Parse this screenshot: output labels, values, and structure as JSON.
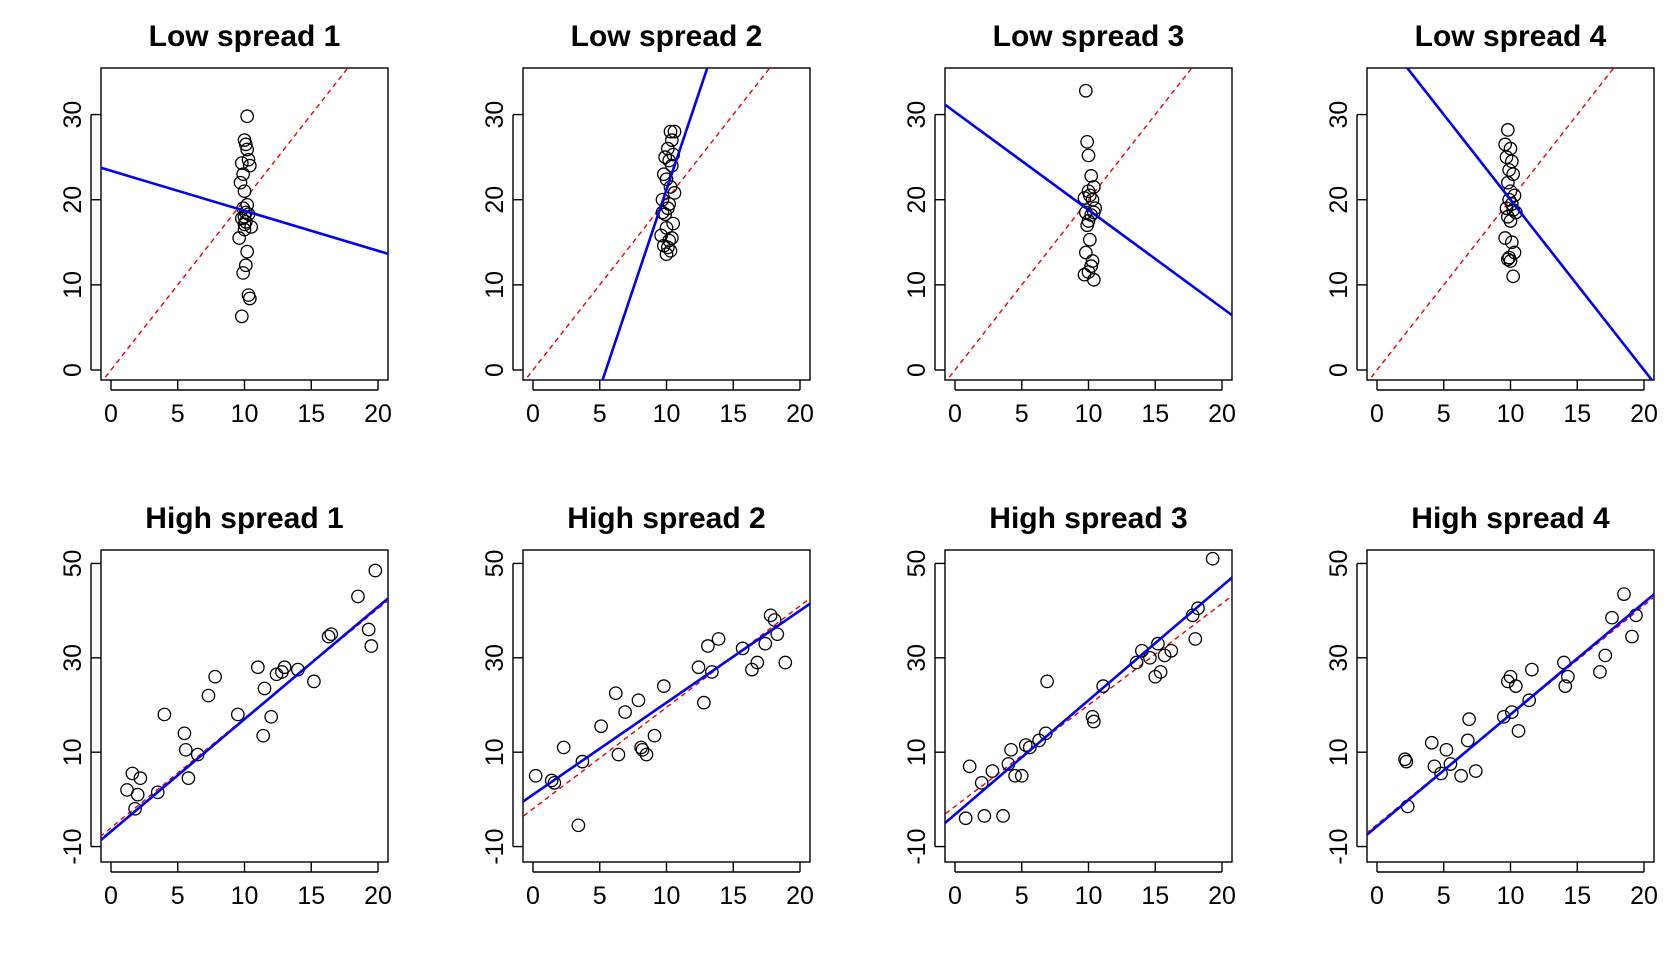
{
  "chart_data": [
    {
      "type": "scatter",
      "title": "Low spread 1",
      "xlim": [
        0,
        20
      ],
      "ylim": [
        0,
        35
      ],
      "xticks": [
        0,
        5,
        10,
        15,
        20
      ],
      "yticks": [
        0,
        10,
        20,
        30
      ],
      "x": [
        10.2,
        9.8,
        10.1,
        10.0,
        10.3,
        9.9,
        10.4,
        9.7,
        10.0,
        10.2,
        9.9,
        10.1,
        10.3,
        9.8,
        10.0,
        10.5,
        9.6,
        10.2,
        10.1,
        9.9,
        10.0,
        10.3,
        10.4,
        9.8,
        10.1,
        10.2,
        10.0
      ],
      "y": [
        29.8,
        24.3,
        26.5,
        27.0,
        24.7,
        23.0,
        24.0,
        22.0,
        21.0,
        19.4,
        19.0,
        18.5,
        18.3,
        17.8,
        17.1,
        16.8,
        15.5,
        13.9,
        12.3,
        11.4,
        16.5,
        8.8,
        8.4,
        6.3,
        17.4,
        25.9,
        18.0
      ],
      "fit_line": {
        "intercept": 23.4,
        "slope": -0.47
      },
      "reference_line": {
        "intercept": 0,
        "slope": 2
      }
    },
    {
      "type": "scatter",
      "title": "Low spread 2",
      "xlim": [
        0,
        20
      ],
      "ylim": [
        0,
        35
      ],
      "xticks": [
        0,
        5,
        10,
        15,
        20
      ],
      "yticks": [
        0,
        10,
        20,
        30
      ],
      "x": [
        10.3,
        10.6,
        10.4,
        10.1,
        10.5,
        9.9,
        10.2,
        10.4,
        9.8,
        10.0,
        10.3,
        10.6,
        9.7,
        10.2,
        10.1,
        9.9,
        10.5,
        10.0,
        9.6,
        10.4,
        10.2,
        9.8,
        10.1,
        10.3,
        10.0,
        9.7
      ],
      "y": [
        28.0,
        28.0,
        27.0,
        26.0,
        25.3,
        25.0,
        24.6,
        24.0,
        23.0,
        22.4,
        21.5,
        20.8,
        20.0,
        19.5,
        19.0,
        18.3,
        17.2,
        16.7,
        15.8,
        15.5,
        15.2,
        14.6,
        14.4,
        14.0,
        13.6,
        18.5
      ],
      "fit_line": {
        "intercept": -25.5,
        "slope": 4.67
      },
      "reference_line": {
        "intercept": 0,
        "slope": 2
      }
    },
    {
      "type": "scatter",
      "title": "Low spread 3",
      "xlim": [
        0,
        20
      ],
      "ylim": [
        0,
        35
      ],
      "xticks": [
        0,
        5,
        10,
        15,
        20
      ],
      "yticks": [
        0,
        10,
        20,
        30
      ],
      "x": [
        9.8,
        9.9,
        10.0,
        10.2,
        10.0,
        10.4,
        10.1,
        9.7,
        10.3,
        10.5,
        9.8,
        10.2,
        10.4,
        10.0,
        9.9,
        10.1,
        9.8,
        10.3,
        10.2,
        10.0,
        9.7,
        10.4
      ],
      "y": [
        32.8,
        26.8,
        25.2,
        22.8,
        21.0,
        21.5,
        20.5,
        20.2,
        20.0,
        19.0,
        18.5,
        18.2,
        18.5,
        17.5,
        17.0,
        15.3,
        13.8,
        12.8,
        12.2,
        11.5,
        11.2,
        10.6
      ],
      "fit_line": {
        "intercept": 30.3,
        "slope": -1.15
      },
      "reference_line": {
        "intercept": 0,
        "slope": 2
      }
    },
    {
      "type": "scatter",
      "title": "Low spread 4",
      "xlim": [
        0,
        20
      ],
      "ylim": [
        0,
        35
      ],
      "xticks": [
        0,
        5,
        10,
        15,
        20
      ],
      "yticks": [
        0,
        10,
        20,
        30
      ],
      "x": [
        9.8,
        9.6,
        10.0,
        9.7,
        10.1,
        9.9,
        10.2,
        9.8,
        10.0,
        10.3,
        9.9,
        10.1,
        9.7,
        10.2,
        10.4,
        9.8,
        10.0,
        9.6,
        10.1,
        10.3,
        9.9,
        9.8,
        10.0,
        10.2
      ],
      "y": [
        28.2,
        26.5,
        26.0,
        25.0,
        24.5,
        23.5,
        23.0,
        22.0,
        21.0,
        20.5,
        20.0,
        19.5,
        19.0,
        18.8,
        18.5,
        18.0,
        17.5,
        15.5,
        15.0,
        13.8,
        13.2,
        13.0,
        12.8,
        11.0
      ],
      "fit_line": {
        "intercept": 40.0,
        "slope": -2.0
      },
      "reference_line": {
        "intercept": 0,
        "slope": 2
      }
    },
    {
      "type": "scatter",
      "title": "High spread 1",
      "xlim": [
        0,
        20
      ],
      "ylim": [
        -12,
        52
      ],
      "xticks": [
        0,
        5,
        10,
        15,
        20
      ],
      "yticks": [
        -10,
        10,
        30,
        50
      ],
      "x": [
        1.2,
        1.6,
        2.0,
        2.2,
        1.8,
        3.5,
        4.0,
        5.5,
        5.6,
        5.8,
        6.5,
        7.3,
        7.8,
        9.5,
        11.0,
        11.4,
        11.5,
        12.0,
        12.4,
        12.8,
        13.0,
        14.0,
        15.2,
        16.3,
        16.5,
        18.5,
        19.3,
        19.5,
        19.8
      ],
      "y": [
        2.0,
        5.5,
        1.0,
        4.5,
        -2.0,
        1.5,
        18.0,
        14.0,
        10.5,
        4.5,
        9.5,
        22.0,
        26.0,
        18.0,
        28.0,
        13.5,
        23.5,
        17.5,
        26.5,
        27.0,
        28.0,
        27.5,
        25.0,
        34.5,
        35.0,
        43.0,
        36.0,
        32.5,
        48.5
      ],
      "fit_line": {
        "intercept": -6.8,
        "slope": 2.38
      },
      "reference_line": {
        "intercept": -6,
        "slope": 2.32
      }
    },
    {
      "type": "scatter",
      "title": "High spread 2",
      "xlim": [
        0,
        20
      ],
      "ylim": [
        -12,
        52
      ],
      "xticks": [
        0,
        5,
        10,
        15,
        20
      ],
      "yticks": [
        -10,
        10,
        30,
        50
      ],
      "x": [
        0.2,
        1.4,
        1.6,
        2.3,
        3.4,
        3.7,
        5.1,
        6.2,
        6.4,
        6.9,
        7.9,
        8.1,
        8.2,
        8.5,
        9.1,
        9.8,
        12.4,
        12.8,
        13.1,
        13.4,
        13.9,
        15.7,
        16.4,
        16.8,
        17.4,
        17.8,
        18.1,
        18.3,
        18.9
      ],
      "y": [
        5.0,
        4.0,
        3.5,
        11.0,
        -5.5,
        8.0,
        15.5,
        22.5,
        9.5,
        18.5,
        21.0,
        11.0,
        10.5,
        9.5,
        13.5,
        24.0,
        28.0,
        20.5,
        32.5,
        27.0,
        34.0,
        32.0,
        27.5,
        29.0,
        33.0,
        39.0,
        38.0,
        35.0,
        29.0
      ],
      "fit_line": {
        "intercept": 1.0,
        "slope": 1.95
      },
      "reference_line": {
        "intercept": -2,
        "slope": 2.15
      }
    },
    {
      "type": "scatter",
      "title": "High spread 3",
      "xlim": [
        0,
        20
      ],
      "ylim": [
        -12,
        52
      ],
      "xticks": [
        0,
        5,
        10,
        15,
        20
      ],
      "yticks": [
        -10,
        10,
        30,
        50
      ],
      "x": [
        0.8,
        1.1,
        2.0,
        2.2,
        2.8,
        3.6,
        4.0,
        4.2,
        4.5,
        5.0,
        5.3,
        5.6,
        6.3,
        6.8,
        6.9,
        10.3,
        10.4,
        11.1,
        13.6,
        14.0,
        14.6,
        15.0,
        15.2,
        15.4,
        15.7,
        16.2,
        17.8,
        18.0,
        18.2,
        19.3
      ],
      "y": [
        -4.0,
        7.0,
        3.5,
        -3.5,
        6.0,
        -3.5,
        7.5,
        10.5,
        5.0,
        5.0,
        11.5,
        11.0,
        12.5,
        14.0,
        25.0,
        17.5,
        16.5,
        24.0,
        29.0,
        31.5,
        30.0,
        26.0,
        33.0,
        27.0,
        30.5,
        31.5,
        39.0,
        34.0,
        40.5,
        51.0
      ],
      "fit_line": {
        "intercept": -3.2,
        "slope": 2.42
      },
      "reference_line": {
        "intercept": -1.5,
        "slope": 2.15
      }
    },
    {
      "type": "scatter",
      "title": "High spread 4",
      "xlim": [
        0,
        20
      ],
      "ylim": [
        -12,
        52
      ],
      "xticks": [
        0,
        5,
        10,
        15,
        20
      ],
      "yticks": [
        -10,
        10,
        30,
        50
      ],
      "x": [
        2.1,
        2.3,
        2.2,
        4.1,
        4.3,
        4.8,
        5.2,
        5.5,
        6.3,
        6.8,
        6.9,
        7.4,
        9.5,
        9.8,
        10.0,
        10.1,
        10.4,
        10.6,
        11.4,
        11.6,
        14.0,
        14.1,
        14.3,
        16.7,
        17.1,
        17.6,
        18.5,
        19.1,
        19.4
      ],
      "y": [
        8.5,
        -1.5,
        8.0,
        12.0,
        7.0,
        5.5,
        10.5,
        7.5,
        5.0,
        12.5,
        17.0,
        6.0,
        17.5,
        25.0,
        26.0,
        18.5,
        24.0,
        14.5,
        21.0,
        27.5,
        29.0,
        24.0,
        26.0,
        27.0,
        30.5,
        38.5,
        43.5,
        34.5,
        39.0
      ],
      "fit_line": {
        "intercept": -5.7,
        "slope": 2.37
      },
      "reference_line": {
        "intercept": -5.3,
        "slope": 2.32
      }
    }
  ]
}
